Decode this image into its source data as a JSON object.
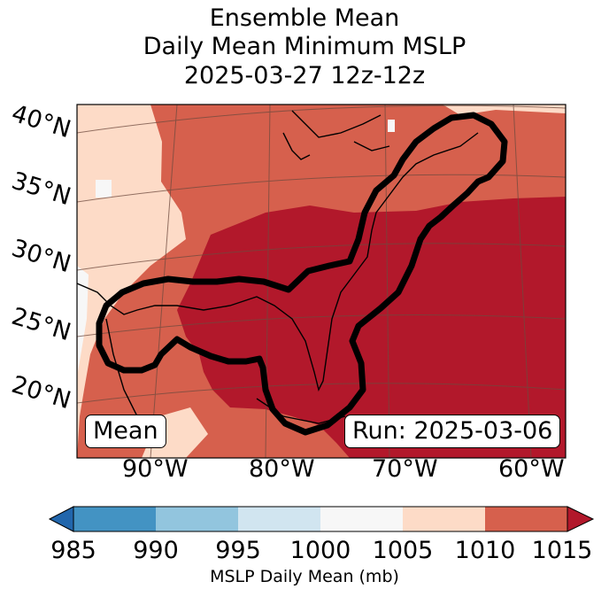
{
  "title": {
    "line1": "Ensemble Mean",
    "line2": "Daily Mean Minimum MSLP",
    "line3": "2025-03-27 12z-12z"
  },
  "map": {
    "lat_labels": [
      "40°N",
      "35°N",
      "30°N",
      "25°N",
      "20°N"
    ],
    "lon_labels": [
      "90°W",
      "80°W",
      "70°W",
      "60°W"
    ],
    "mean_box": "Mean",
    "run_box": "Run: 2025-03-06",
    "contour_color": "#000000"
  },
  "colorbar": {
    "ticks": [
      "985",
      "990",
      "995",
      "1000",
      "1005",
      "1010",
      "1015"
    ],
    "colors": [
      "#2166ac",
      "#4393c3",
      "#92c5de",
      "#d1e5f0",
      "#f7f7f7",
      "#fddbc7",
      "#d6604d",
      "#b2182b"
    ],
    "label": "MSLP Daily Mean (mb)"
  }
}
